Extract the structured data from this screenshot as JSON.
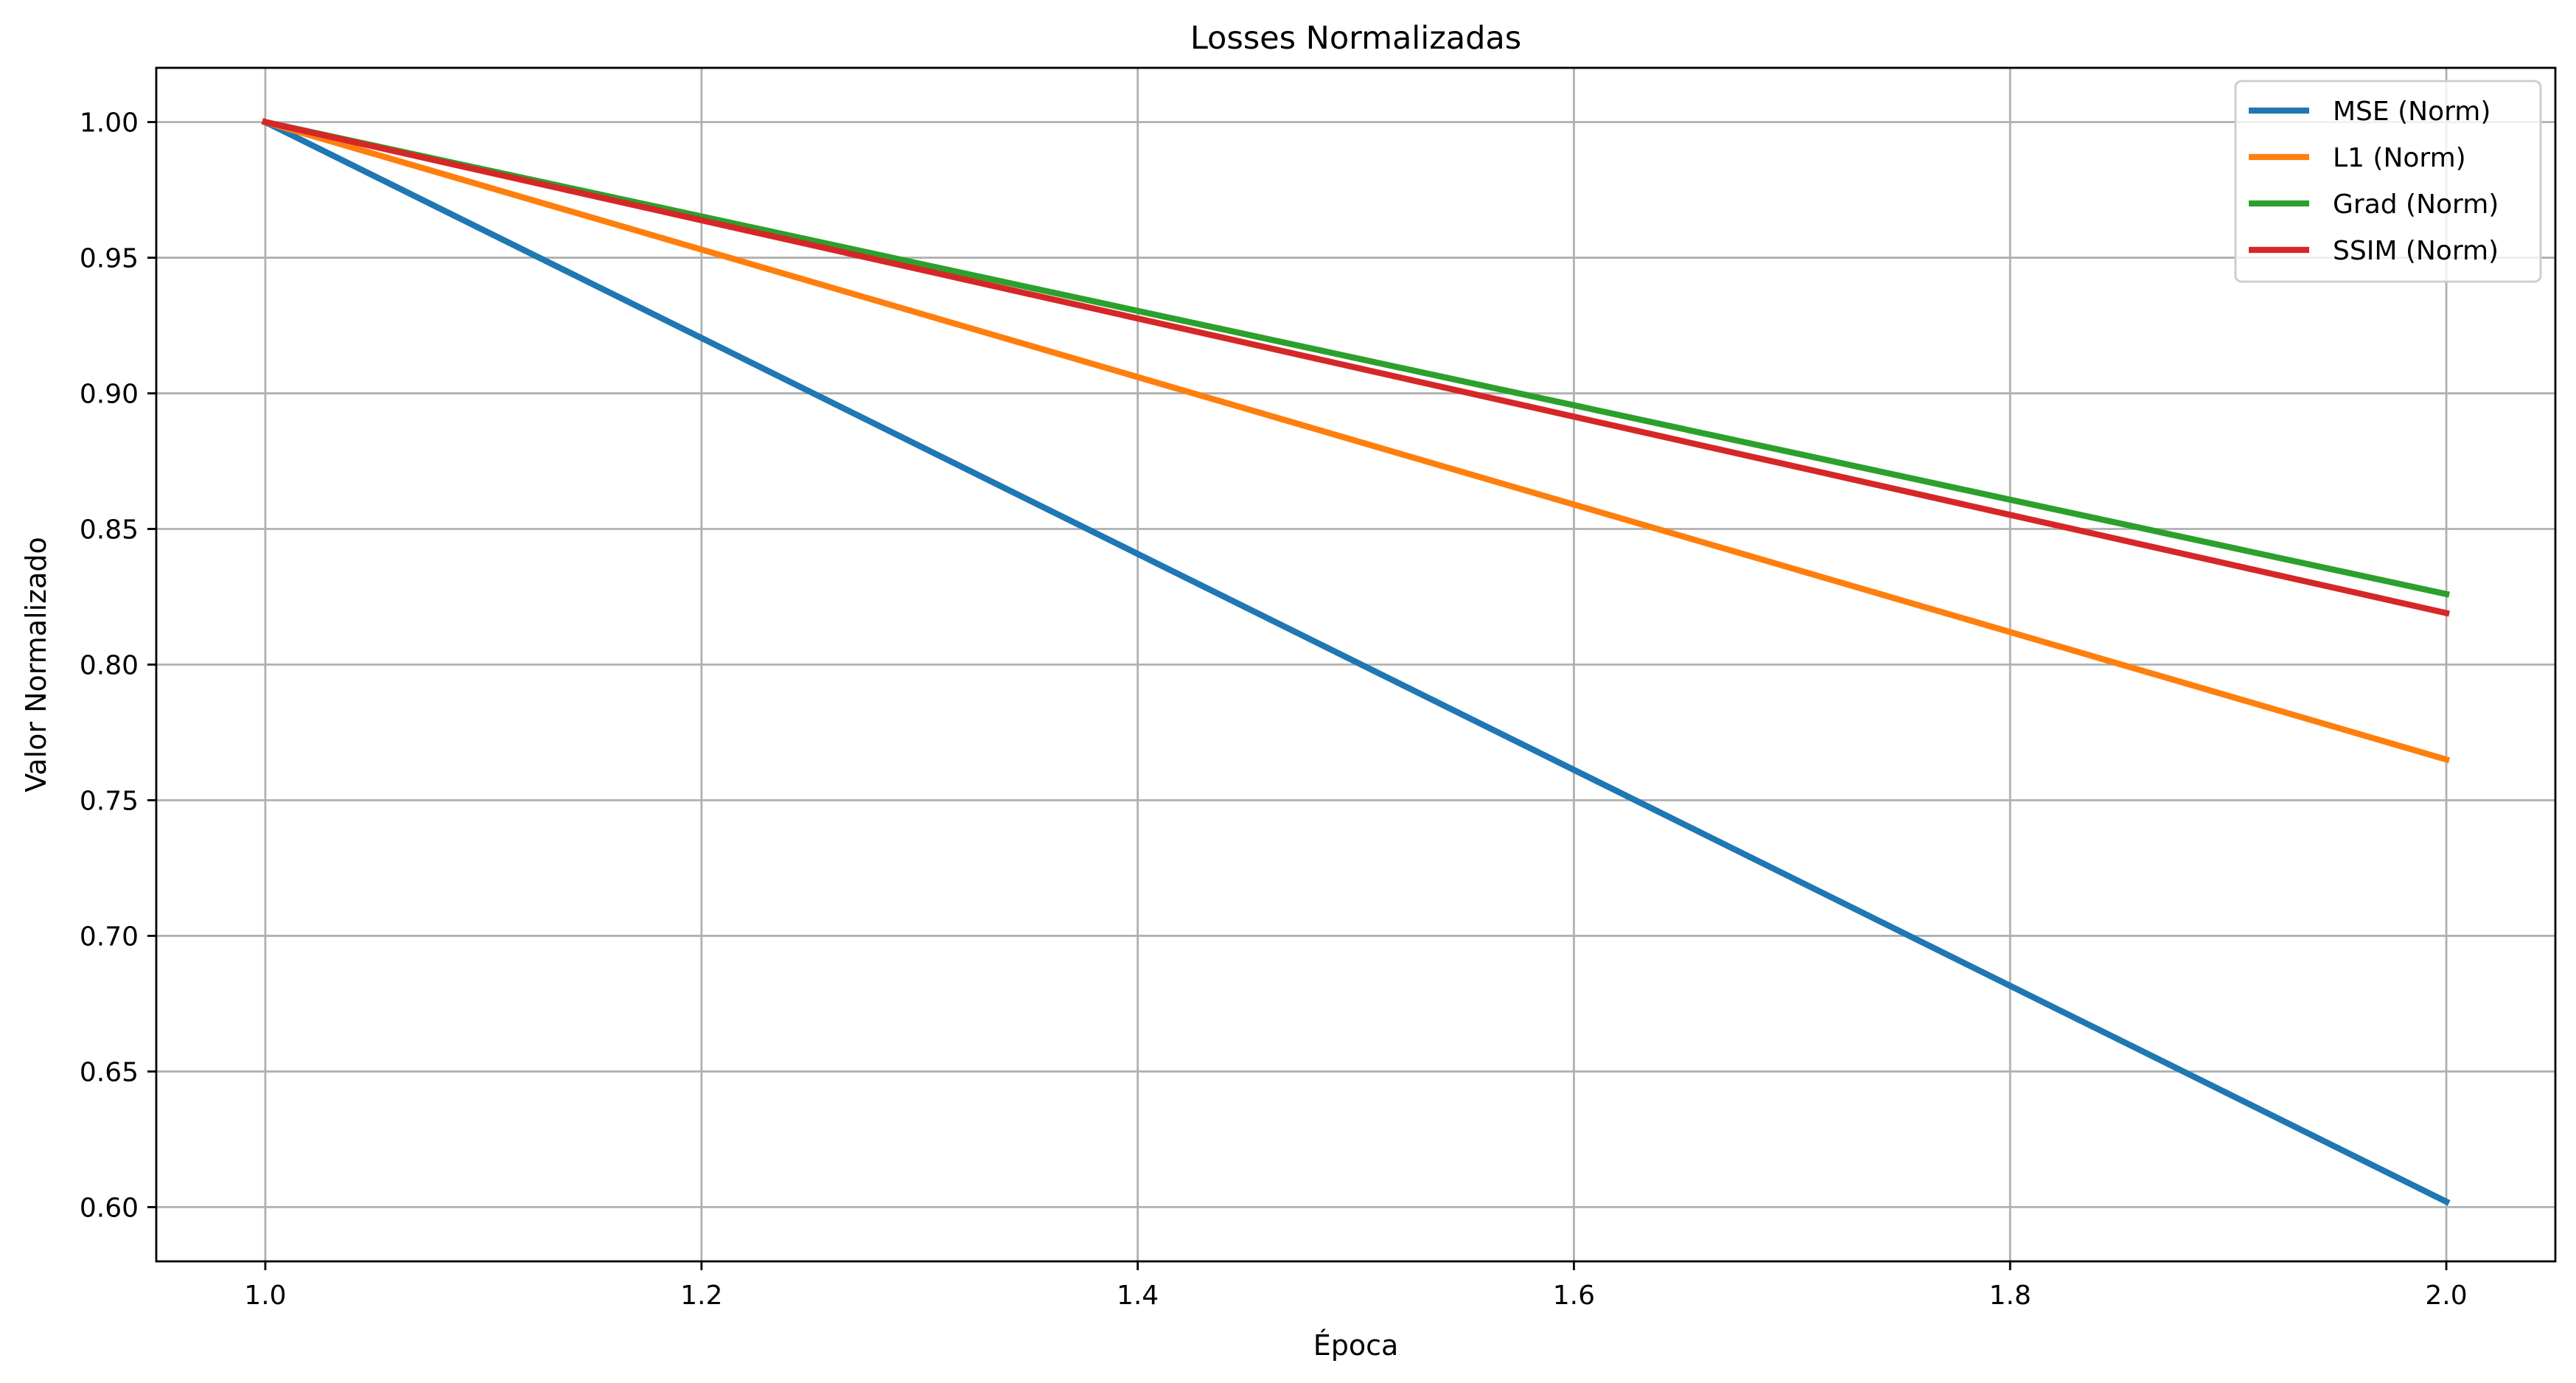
{
  "chart_data": {
    "type": "line",
    "title": "Losses Normalizadas",
    "xlabel": "Época",
    "ylabel": "Valor Normalizado",
    "xlim": [
      0.95,
      2.05
    ],
    "ylim": [
      0.58,
      1.02
    ],
    "x_ticks": [
      1.0,
      1.2,
      1.4,
      1.6,
      1.8,
      2.0
    ],
    "x_tick_labels": [
      "1.0",
      "1.2",
      "1.4",
      "1.6",
      "1.8",
      "2.0"
    ],
    "y_ticks": [
      0.6,
      0.65,
      0.7,
      0.75,
      0.8,
      0.85,
      0.9,
      0.95,
      1.0
    ],
    "y_tick_labels": [
      "0.60",
      "0.65",
      "0.70",
      "0.75",
      "0.80",
      "0.85",
      "0.90",
      "0.95",
      "1.00"
    ],
    "grid": true,
    "legend_position": "top-right",
    "x": [
      1,
      2
    ],
    "series": [
      {
        "name": "MSE (Norm)",
        "color": "#1f77b4",
        "values": [
          1.0,
          0.602
        ]
      },
      {
        "name": "L1 (Norm)",
        "color": "#ff7f0e",
        "values": [
          1.0,
          0.765
        ]
      },
      {
        "name": "Grad (Norm)",
        "color": "#2ca02c",
        "values": [
          1.0,
          0.826
        ]
      },
      {
        "name": "SSIM (Norm)",
        "color": "#d62728",
        "values": [
          1.0,
          0.819
        ]
      }
    ]
  }
}
